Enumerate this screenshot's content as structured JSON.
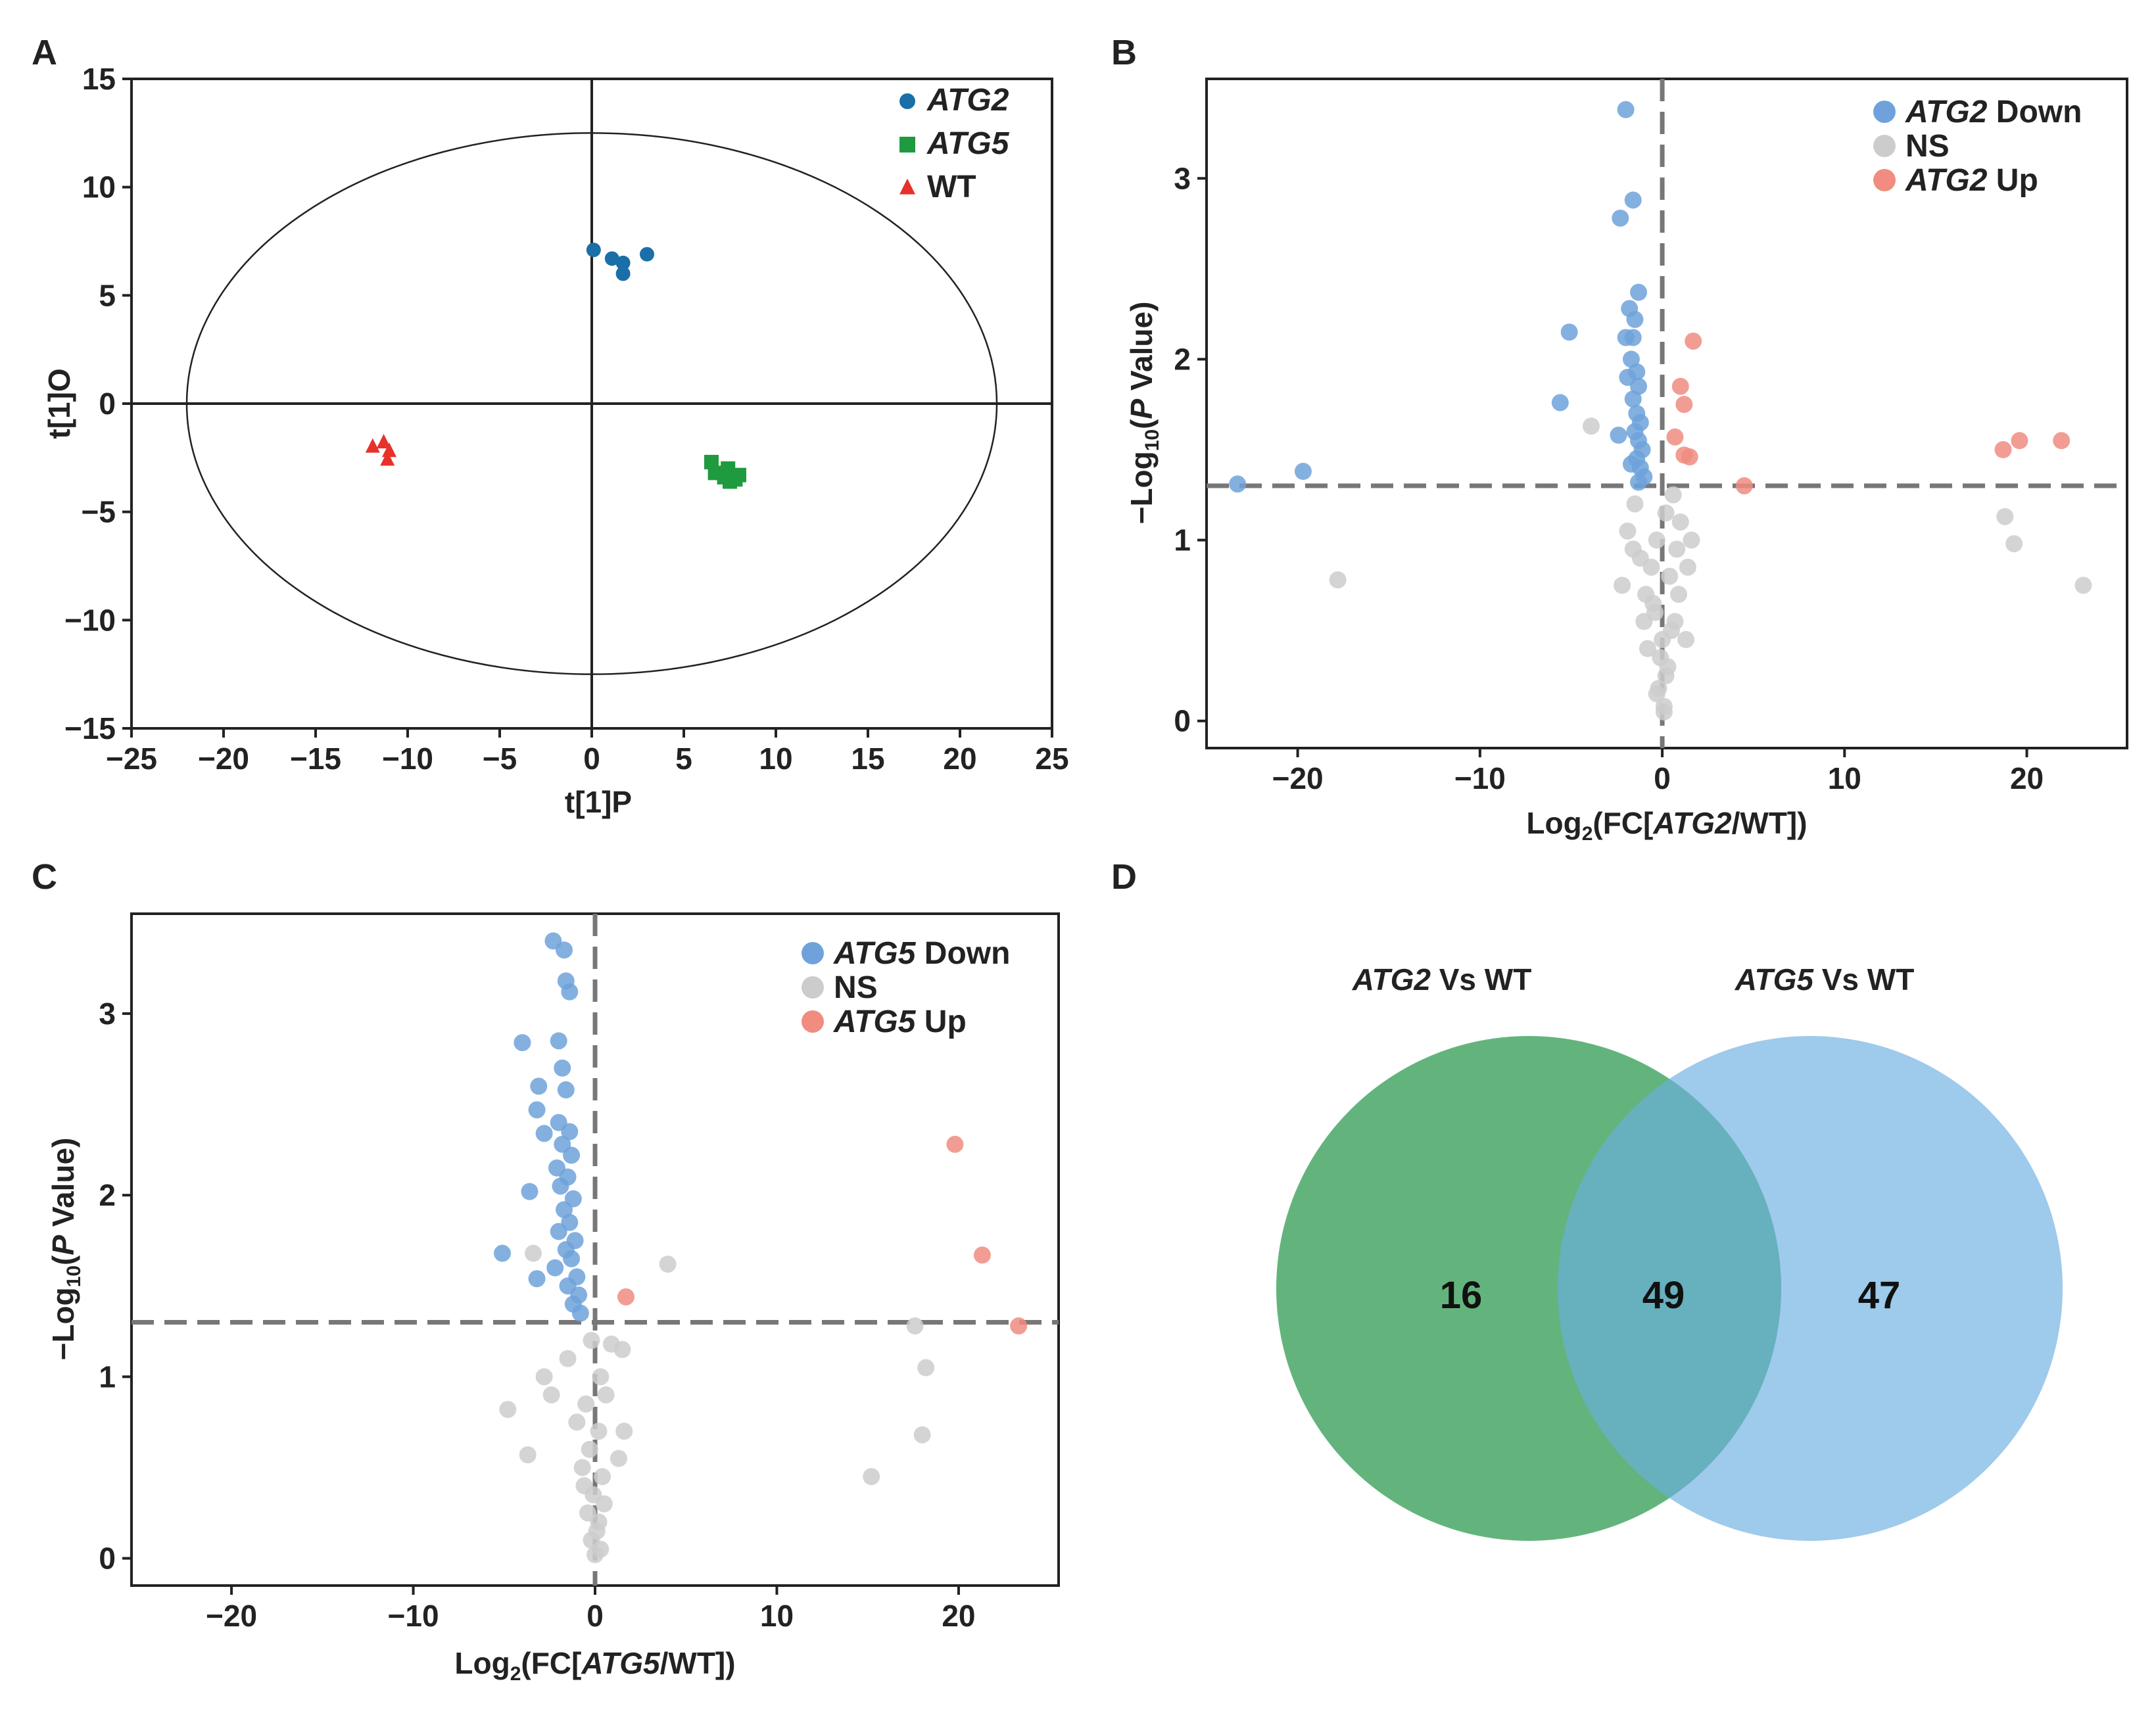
{
  "figure": {
    "panels": [
      {
        "letter": "A"
      },
      {
        "letter": "B"
      },
      {
        "letter": "C"
      },
      {
        "letter": "D"
      }
    ]
  },
  "chart_data": [
    {
      "panel": "A",
      "type": "scatter",
      "xlabel": "t[1]P",
      "ylabel": "t[1]O",
      "xlim": [
        -25,
        25
      ],
      "ylim": [
        -15,
        15
      ],
      "xticks": [
        -25,
        -20,
        -15,
        -10,
        -5,
        0,
        5,
        10,
        15,
        20,
        25
      ],
      "yticks": [
        -15,
        -10,
        -5,
        0,
        5,
        10,
        15
      ],
      "grid": false,
      "legend_position": "top-right",
      "ellipse": {
        "cx": 0,
        "cy": 0,
        "rx": 22,
        "ry": 12.5
      },
      "series": [
        {
          "name": "ATG2",
          "italic": true,
          "marker": "circle",
          "color": "#1a6fa8",
          "points": [
            [
              0.1,
              7.1
            ],
            [
              1.1,
              6.7
            ],
            [
              1.7,
              6.5
            ],
            [
              1.7,
              6.0
            ],
            [
              3.0,
              6.9
            ]
          ]
        },
        {
          "name": "ATG5",
          "italic": true,
          "marker": "square",
          "color": "#1f9a3f",
          "points": [
            [
              6.5,
              -2.7
            ],
            [
              6.7,
              -3.2
            ],
            [
              7.2,
              -3.4
            ],
            [
              7.5,
              -3.6
            ],
            [
              7.8,
              -3.5
            ],
            [
              8.0,
              -3.3
            ],
            [
              7.4,
              -3.0
            ]
          ]
        },
        {
          "name": "WT",
          "italic": false,
          "marker": "triangle",
          "color": "#e8312b",
          "points": [
            [
              -11.9,
              -2.0
            ],
            [
              -11.3,
              -1.8
            ],
            [
              -11.0,
              -2.2
            ],
            [
              -11.1,
              -2.6
            ]
          ]
        }
      ]
    },
    {
      "panel": "B",
      "type": "scatter",
      "xlabel_prefix": "Log",
      "xlabel_sub": "2",
      "xlabel_open": "(FC[",
      "xlabel_italic": "ATG2",
      "xlabel_close": "/WT])",
      "ylabel_prefix": "−Log",
      "ylabel_sub": "10",
      "ylabel_open": "(",
      "ylabel_italic": "P",
      "ylabel_close": " Value)",
      "xlim": [
        -25,
        25.5
      ],
      "ylim": [
        -0.15,
        3.55
      ],
      "xticks": [
        -20,
        -10,
        0,
        10,
        20
      ],
      "yticks": [
        0,
        1,
        2,
        3
      ],
      "thresholds": {
        "x": 0,
        "y": 1.3
      },
      "grid": false,
      "legend_position": "top-right",
      "series": [
        {
          "name": "NS",
          "italic_part": "",
          "rest": "NS",
          "color": "#cccccc",
          "points": [
            [
              -3.9,
              1.63
            ],
            [
              -17.8,
              0.78
            ],
            [
              18.8,
              1.13
            ],
            [
              19.3,
              0.98
            ],
            [
              23.1,
              0.75
            ],
            [
              -1.5,
              1.2
            ],
            [
              -1.9,
              1.05
            ],
            [
              -1.2,
              0.9
            ],
            [
              0.6,
              1.25
            ],
            [
              1.0,
              1.1
            ],
            [
              0.8,
              0.95
            ],
            [
              -2.2,
              0.75
            ],
            [
              -0.4,
              0.6
            ],
            [
              0.5,
              0.5
            ],
            [
              -0.8,
              0.4
            ],
            [
              0.3,
              0.3
            ],
            [
              -0.2,
              0.18
            ],
            [
              0.1,
              0.08
            ],
            [
              -0.6,
              0.85
            ],
            [
              0.9,
              0.7
            ],
            [
              1.6,
              1.0
            ],
            [
              -1.0,
              0.55
            ],
            [
              0.2,
              1.15
            ],
            [
              -0.3,
              1.0
            ],
            [
              0.4,
              0.8
            ],
            [
              -0.5,
              0.65
            ],
            [
              0.0,
              0.45
            ],
            [
              -0.1,
              0.35
            ],
            [
              0.2,
              0.25
            ],
            [
              -0.3,
              0.15
            ],
            [
              0.1,
              0.05
            ],
            [
              1.4,
              0.85
            ],
            [
              -1.6,
              0.95
            ],
            [
              0.7,
              0.55
            ],
            [
              -0.9,
              0.7
            ],
            [
              1.3,
              0.45
            ]
          ]
        },
        {
          "name": "ATG2 Down",
          "italic_part": "ATG2",
          "rest": " Down",
          "color": "#6fa2db",
          "points": [
            [
              -2.0,
              3.38
            ],
            [
              -1.6,
              2.88
            ],
            [
              -2.3,
              2.78
            ],
            [
              -1.3,
              2.37
            ],
            [
              -1.8,
              2.28
            ],
            [
              -1.5,
              2.22
            ],
            [
              -1.6,
              2.12
            ],
            [
              -2.0,
              2.12
            ],
            [
              -1.7,
              2.0
            ],
            [
              -1.4,
              1.93
            ],
            [
              -1.9,
              1.9
            ],
            [
              -1.3,
              1.85
            ],
            [
              -1.6,
              1.78
            ],
            [
              -1.4,
              1.7
            ],
            [
              -1.2,
              1.65
            ],
            [
              -1.5,
              1.6
            ],
            [
              -1.3,
              1.55
            ],
            [
              -1.1,
              1.5
            ],
            [
              -1.4,
              1.45
            ],
            [
              -1.2,
              1.4
            ],
            [
              -1.0,
              1.35
            ],
            [
              -1.3,
              1.32
            ],
            [
              -5.1,
              2.15
            ],
            [
              -5.6,
              1.76
            ],
            [
              -19.7,
              1.38
            ],
            [
              -23.3,
              1.31
            ],
            [
              -2.4,
              1.58
            ],
            [
              -1.7,
              1.42
            ]
          ]
        },
        {
          "name": "ATG2 Up",
          "italic_part": "ATG2",
          "rest": " Up",
          "color": "#f08c80",
          "points": [
            [
              1.7,
              2.1
            ],
            [
              1.0,
              1.85
            ],
            [
              1.2,
              1.75
            ],
            [
              0.7,
              1.57
            ],
            [
              1.2,
              1.47
            ],
            [
              1.5,
              1.46
            ],
            [
              4.5,
              1.3
            ],
            [
              18.7,
              1.5
            ],
            [
              19.6,
              1.55
            ],
            [
              21.9,
              1.55
            ]
          ]
        }
      ]
    },
    {
      "panel": "C",
      "type": "scatter",
      "xlabel_prefix": "Log",
      "xlabel_sub": "2",
      "xlabel_open": "(FC[",
      "xlabel_italic": "ATG5",
      "xlabel_close": "/WT])",
      "ylabel_prefix": "−Log",
      "ylabel_sub": "10",
      "ylabel_open": "(",
      "ylabel_italic": "P",
      "ylabel_close": " Value)",
      "xlim": [
        -25.5,
        25.5
      ],
      "ylim": [
        -0.15,
        3.55
      ],
      "xticks": [
        -20,
        -10,
        0,
        10,
        20
      ],
      "yticks": [
        0,
        1,
        2,
        3
      ],
      "thresholds": {
        "x": 0,
        "y": 1.3
      },
      "grid": false,
      "legend_position": "top-right",
      "series": [
        {
          "name": "NS",
          "italic_part": "",
          "rest": "NS",
          "color": "#cccccc",
          "points": [
            [
              -3.4,
              1.68
            ],
            [
              4.0,
              1.62
            ],
            [
              17.6,
              1.28
            ],
            [
              18.2,
              1.05
            ],
            [
              18.0,
              0.68
            ],
            [
              15.2,
              0.45
            ],
            [
              -4.8,
              0.82
            ],
            [
              -3.7,
              0.57
            ],
            [
              -2.8,
              1.0
            ],
            [
              -2.4,
              0.9
            ],
            [
              1.5,
              1.15
            ],
            [
              1.6,
              0.7
            ],
            [
              1.3,
              0.55
            ],
            [
              -0.2,
              1.2
            ],
            [
              0.3,
              1.0
            ],
            [
              -0.5,
              0.85
            ],
            [
              0.2,
              0.7
            ],
            [
              -0.3,
              0.6
            ],
            [
              0.4,
              0.45
            ],
            [
              -0.1,
              0.35
            ],
            [
              0.2,
              0.2
            ],
            [
              -0.2,
              0.1
            ],
            [
              0.0,
              0.02
            ],
            [
              -1.0,
              0.75
            ],
            [
              0.6,
              0.9
            ],
            [
              -0.7,
              0.5
            ],
            [
              0.5,
              0.3
            ],
            [
              -0.4,
              0.25
            ],
            [
              0.1,
              0.15
            ],
            [
              -1.5,
              1.1
            ],
            [
              0.9,
              1.18
            ],
            [
              -0.6,
              0.4
            ],
            [
              0.3,
              0.05
            ]
          ]
        },
        {
          "name": "ATG5 Down",
          "italic_part": "ATG5",
          "rest": " Down",
          "color": "#6fa2db",
          "points": [
            [
              -2.3,
              3.4
            ],
            [
              -1.7,
              3.35
            ],
            [
              -1.6,
              3.18
            ],
            [
              -1.4,
              3.12
            ],
            [
              -4.0,
              2.84
            ],
            [
              -2.0,
              2.85
            ],
            [
              -1.8,
              2.7
            ],
            [
              -3.1,
              2.6
            ],
            [
              -1.6,
              2.58
            ],
            [
              -3.2,
              2.47
            ],
            [
              -2.0,
              2.4
            ],
            [
              -1.4,
              2.35
            ],
            [
              -2.8,
              2.34
            ],
            [
              -1.8,
              2.28
            ],
            [
              -1.3,
              2.22
            ],
            [
              -2.1,
              2.15
            ],
            [
              -1.5,
              2.1
            ],
            [
              -1.9,
              2.05
            ],
            [
              -3.6,
              2.02
            ],
            [
              -1.2,
              1.98
            ],
            [
              -1.7,
              1.92
            ],
            [
              -1.4,
              1.85
            ],
            [
              -2.0,
              1.8
            ],
            [
              -1.1,
              1.75
            ],
            [
              -1.6,
              1.7
            ],
            [
              -1.3,
              1.65
            ],
            [
              -2.2,
              1.6
            ],
            [
              -1.0,
              1.55
            ],
            [
              -1.5,
              1.5
            ],
            [
              -0.9,
              1.45
            ],
            [
              -1.2,
              1.4
            ],
            [
              -0.8,
              1.35
            ],
            [
              -5.1,
              1.68
            ],
            [
              -3.2,
              1.54
            ]
          ]
        },
        {
          "name": "ATG5 Up",
          "italic_part": "ATG5",
          "rest": " Up",
          "color": "#f08c80",
          "points": [
            [
              1.7,
              1.44
            ],
            [
              19.8,
              2.28
            ],
            [
              21.3,
              1.67
            ],
            [
              23.3,
              1.28
            ]
          ]
        }
      ]
    },
    {
      "panel": "D",
      "type": "venn",
      "sets": [
        {
          "label_italic": "ATG2",
          "label_rest": " Vs WT",
          "only": "16",
          "color": "#2f9b50"
        },
        {
          "label_italic": "ATG5",
          "label_rest": " Vs WT",
          "only": "47",
          "color": "#6aaee0"
        }
      ],
      "intersection": "49"
    }
  ]
}
